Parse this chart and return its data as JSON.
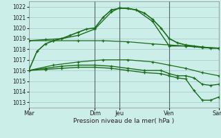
{
  "background_color": "#cceee8",
  "grid_color": "#aacccc",
  "line_color": "#1a6b1a",
  "marker": "+",
  "xlabel": "Pression niveau de la mer( hPa )",
  "ylim": [
    1012.5,
    1022.5
  ],
  "yticks": [
    1013,
    1014,
    1015,
    1016,
    1017,
    1018,
    1019,
    1020,
    1021,
    1022
  ],
  "day_labels": [
    "Mar",
    "Dim",
    "Jeu",
    "Ven",
    "Sam"
  ],
  "day_positions": [
    0,
    8,
    11,
    17,
    23
  ],
  "lines": [
    {
      "x": [
        0,
        1,
        2,
        3,
        4,
        5,
        6,
        7,
        8,
        9,
        10,
        11,
        12,
        13,
        14,
        15,
        16,
        17,
        18,
        19,
        20,
        21,
        22,
        23
      ],
      "y": [
        1016.0,
        1017.8,
        1018.5,
        1018.8,
        1019.0,
        1019.3,
        1019.6,
        1019.9,
        1020.0,
        1021.0,
        1021.7,
        1021.85,
        1021.85,
        1021.7,
        1021.4,
        1020.8,
        1020.0,
        1019.0,
        1018.6,
        1018.4,
        1018.3,
        1018.2,
        1018.1,
        1018.1
      ],
      "lw": 1.2,
      "ms": 3.5
    },
    {
      "x": [
        0,
        2,
        4,
        6,
        8,
        10,
        11,
        13,
        15,
        17,
        19,
        21,
        23
      ],
      "y": [
        1018.8,
        1018.9,
        1019.0,
        1019.3,
        1019.9,
        1021.5,
        1021.9,
        1021.7,
        1020.6,
        1018.3,
        1018.3,
        1018.15,
        1018.1
      ],
      "lw": 1.0,
      "ms": 3.5
    },
    {
      "x": [
        0,
        3,
        6,
        9,
        12,
        15,
        17,
        19,
        21,
        23
      ],
      "y": [
        1018.8,
        1018.8,
        1018.8,
        1018.8,
        1018.7,
        1018.5,
        1018.4,
        1018.3,
        1018.2,
        1018.1
      ],
      "lw": 0.9,
      "ms": 3.0
    },
    {
      "x": [
        0,
        3,
        6,
        9,
        12,
        15,
        17,
        19,
        21,
        23
      ],
      "y": [
        1016.0,
        1016.5,
        1016.8,
        1017.0,
        1017.0,
        1016.8,
        1016.5,
        1016.2,
        1015.8,
        1015.5
      ],
      "lw": 0.9,
      "ms": 3.0
    },
    {
      "x": [
        0,
        2,
        4,
        6,
        8,
        10,
        12,
        14,
        16,
        17,
        18,
        19,
        20,
        21,
        22,
        23
      ],
      "y": [
        1016.0,
        1016.2,
        1016.4,
        1016.5,
        1016.5,
        1016.4,
        1016.2,
        1016.0,
        1016.0,
        1015.7,
        1015.5,
        1015.5,
        1015.3,
        1014.7,
        1014.6,
        1014.7
      ],
      "lw": 1.0,
      "ms": 3.0
    },
    {
      "x": [
        0,
        2,
        4,
        6,
        8,
        10,
        12,
        14,
        16,
        17,
        18,
        19,
        20,
        21,
        22,
        23
      ],
      "y": [
        1016.0,
        1016.1,
        1016.2,
        1016.3,
        1016.3,
        1016.2,
        1016.0,
        1015.8,
        1015.7,
        1015.5,
        1015.3,
        1015.2,
        1014.1,
        1013.2,
        1013.2,
        1013.5
      ],
      "lw": 1.0,
      "ms": 3.0
    }
  ],
  "vline_positions": [
    8,
    11,
    17,
    23
  ],
  "vline_color": "#556666"
}
